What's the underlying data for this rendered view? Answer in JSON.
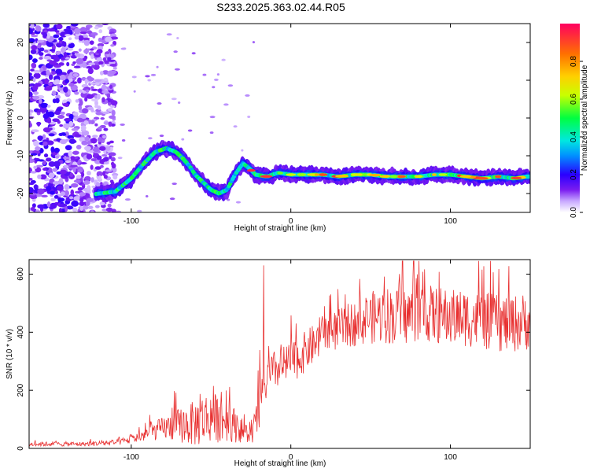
{
  "title": "S233.2025.363.02.44.R05",
  "colors": {
    "snr_line": "#e83030",
    "axis": "#000000",
    "colormap": [
      "#ffffff",
      "#e8d8ff",
      "#b088ff",
      "#7a1cf0",
      "#2a00ff",
      "#0090ff",
      "#00e8e0",
      "#00ff40",
      "#c8ff00",
      "#ff9000",
      "#ff0030"
    ]
  },
  "chart_data": [
    {
      "type": "heatmap",
      "id": "spectrogram",
      "xlabel": "Height of straight line (km)",
      "ylabel": "Frequency (Hz)",
      "xlim": [
        -164,
        150
      ],
      "ylim": [
        -25,
        25
      ],
      "xticks": [
        -100,
        0,
        100
      ],
      "xtick_labels": [
        "-100",
        "0",
        "100"
      ],
      "yticks": [
        -20,
        -10,
        0,
        10,
        20
      ],
      "ytick_labels": [
        "-20",
        "-10",
        "0",
        "10",
        "20"
      ],
      "colorbar": {
        "label": "Normalized spectral amplitude",
        "range": [
          0,
          1
        ],
        "ticks": [
          0.0,
          0.2,
          0.4,
          0.6,
          0.8
        ],
        "tick_labels": [
          "0.0",
          "0.2",
          "0.4",
          "0.6",
          "0.8"
        ]
      },
      "ridge": {
        "x": [
          -120,
          -110,
          -100,
          -92,
          -85,
          -78,
          -72,
          -67,
          -63,
          -60,
          -55,
          -50,
          -45,
          -40,
          -35,
          -30,
          -27,
          -22,
          -15,
          -8,
          0,
          10,
          20,
          30,
          40,
          50,
          60,
          70,
          80,
          90,
          100,
          110,
          120,
          130,
          140,
          148
        ],
        "y": [
          -20,
          -19.5,
          -16,
          -12,
          -9,
          -8,
          -9,
          -11,
          -13,
          -15,
          -17,
          -19,
          -20,
          -19,
          -15,
          -12,
          -13,
          -15,
          -15.5,
          -14.5,
          -15,
          -15,
          -15,
          -15.5,
          -15,
          -15,
          -15.5,
          -15.5,
          -15.5,
          -15,
          -15,
          -15.5,
          -16,
          -15.5,
          -16,
          -15.5
        ]
      }
    },
    {
      "type": "line",
      "id": "snr",
      "xlabel": "Height of straight line (km)",
      "ylabel": "SNR (10 * v/v)",
      "xlim": [
        -164,
        150
      ],
      "ylim": [
        0,
        650
      ],
      "xticks": [
        -100,
        0,
        100
      ],
      "xtick_labels": [
        "-100",
        "0",
        "100"
      ],
      "yticks": [
        0,
        200,
        400,
        600
      ],
      "ytick_labels": [
        "0",
        "200",
        "400",
        "600"
      ],
      "envelope": {
        "x": [
          -164,
          -130,
          -110,
          -100,
          -90,
          -80,
          -70,
          -60,
          -55,
          -50,
          -45,
          -40,
          -35,
          -30,
          -25,
          -20,
          -18,
          -17,
          -15,
          -10,
          -5,
          0,
          5,
          10,
          15,
          20,
          30,
          40,
          50,
          60,
          70,
          80,
          90,
          100,
          110,
          120,
          130,
          140,
          150
        ],
        "mean": [
          15,
          15,
          20,
          30,
          50,
          70,
          80,
          85,
          100,
          110,
          100,
          95,
          80,
          60,
          40,
          120,
          200,
          180,
          240,
          270,
          280,
          300,
          310,
          340,
          360,
          390,
          410,
          430,
          450,
          460,
          450,
          470,
          460,
          450,
          450,
          440,
          430,
          430,
          440
        ],
        "amp": [
          8,
          8,
          10,
          15,
          25,
          40,
          60,
          80,
          90,
          90,
          80,
          70,
          60,
          40,
          30,
          80,
          100,
          80,
          60,
          70,
          70,
          70,
          70,
          70,
          70,
          70,
          70,
          80,
          90,
          100,
          100,
          100,
          100,
          100,
          100,
          100,
          100,
          100,
          100
        ]
      },
      "spike": {
        "x": -17,
        "y": 630
      }
    }
  ]
}
